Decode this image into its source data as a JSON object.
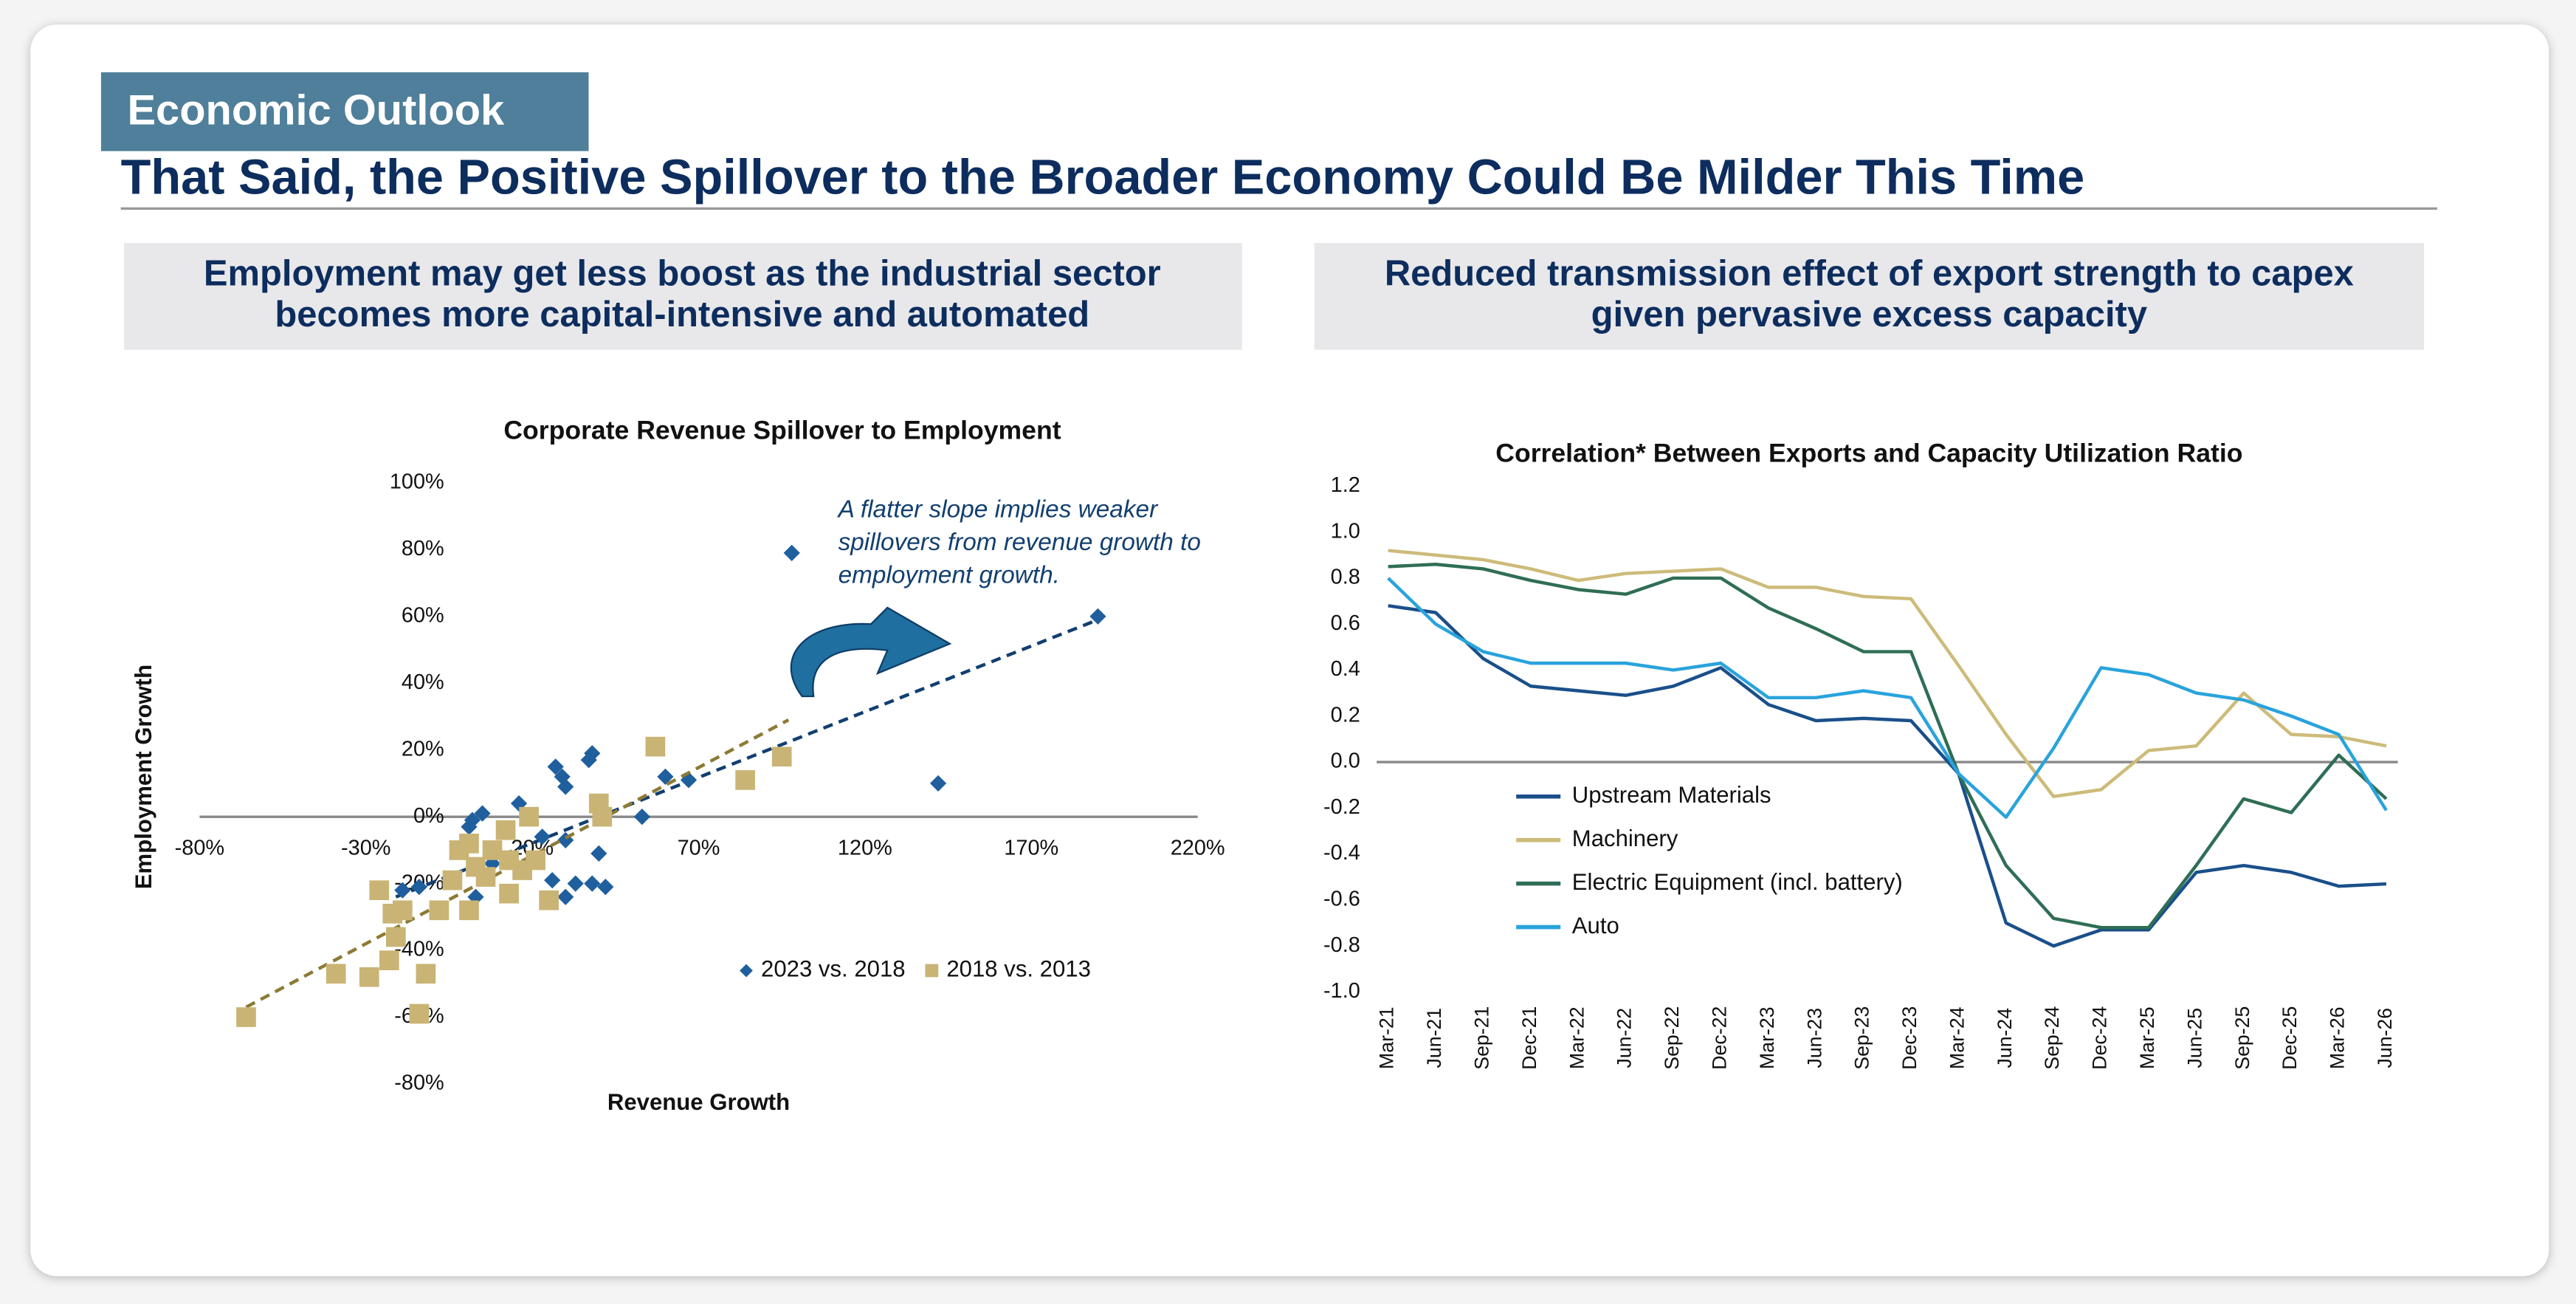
{
  "header": {
    "tag": "Economic Outlook",
    "title": "That Said, the Positive Spillover to the Broader Economy Could Be Milder This Time"
  },
  "panels": [
    {
      "heading": [
        "Employment may get less boost as the industrial sector",
        "becomes more capital-intensive and automated"
      ]
    },
    {
      "heading": [
        "Reduced transmission effect of export strength to capex",
        "given pervasive excess capacity"
      ]
    }
  ],
  "chart_data": [
    {
      "type": "scatter",
      "title": "Corporate Revenue Spillover to Employment",
      "x_label": "Revenue Growth",
      "y_label": "Employment Growth",
      "annotation": [
        "A flatter slope implies weaker",
        "spillovers from revenue growth to",
        "employment growth."
      ],
      "xlim": [
        -80,
        220
      ],
      "xticks": [
        {
          "value": -80,
          "label": "-80%"
        },
        {
          "value": -30,
          "label": "-30%"
        },
        {
          "value": 20,
          "label": "20%"
        },
        {
          "value": 70,
          "label": "70%"
        },
        {
          "value": 120,
          "label": "120%"
        },
        {
          "value": 170,
          "label": "170%"
        },
        {
          "value": 220,
          "label": "220%"
        }
      ],
      "ylim": [
        -80,
        100
      ],
      "yticks": [
        {
          "value": -80,
          "label": "-80%"
        },
        {
          "value": -60,
          "label": "-60%"
        },
        {
          "value": -40,
          "label": "-40%"
        },
        {
          "value": -20,
          "label": "-20%"
        },
        {
          "value": 0,
          "label": "0%"
        },
        {
          "value": 20,
          "label": "20%"
        },
        {
          "value": 40,
          "label": "40%"
        },
        {
          "value": 60,
          "label": "60%"
        },
        {
          "value": 80,
          "label": "80%"
        },
        {
          "value": 100,
          "label": "100%"
        }
      ],
      "series": [
        {
          "name": "2023 vs. 2018",
          "color": "#1f5f9e",
          "marker": "diamond",
          "x": [
            98,
            190,
            142,
            38,
            37,
            27,
            29,
            30,
            60,
            67,
            53,
            16,
            5,
            2,
            1,
            40,
            30,
            26,
            33,
            38,
            42,
            30,
            23,
            3,
            -14,
            -19,
            8
          ],
          "y": [
            79,
            60,
            10,
            19,
            17,
            15,
            12,
            9,
            12,
            11,
            0,
            4,
            1,
            -1,
            -3,
            -11,
            -7,
            -19,
            -20,
            -20,
            -21,
            -24,
            -6,
            -24,
            -21,
            -22,
            -14
          ],
          "trend": {
            "x": [
              -21,
              190
            ],
            "y": [
              -24,
              59
            ]
          }
        },
        {
          "name": "2018 vs. 2013",
          "color": "#c9b475",
          "marker": "square",
          "x": [
            -66,
            -14,
            -39,
            -29,
            -23,
            -12,
            -21,
            -19,
            -22,
            -26,
            -8,
            1,
            -2,
            1,
            6,
            13,
            17,
            13,
            21,
            25,
            12,
            19,
            40,
            41,
            57,
            84,
            95,
            8,
            -4,
            3
          ],
          "y": [
            -60,
            -59,
            -47,
            -48,
            -43,
            -47,
            -36,
            -28,
            -29,
            -22,
            -28,
            -28,
            -10,
            -8,
            -18,
            -13,
            -16,
            -23,
            -13,
            -25,
            -4,
            0,
            4,
            0,
            21,
            11,
            18,
            -10,
            -19,
            -15
          ],
          "trend": {
            "x": [
              -66,
              97
            ],
            "y": [
              -57,
              29
            ]
          }
        }
      ]
    },
    {
      "type": "line",
      "title": "Correlation* Between Exports and Capacity Utilization Ratio",
      "categories": [
        "Mar-21",
        "Jun-21",
        "Sep-21",
        "Dec-21",
        "Mar-22",
        "Jun-22",
        "Sep-22",
        "Dec-22",
        "Mar-23",
        "Jun-23",
        "Sep-23",
        "Dec-23",
        "Mar-24",
        "Jun-24",
        "Sep-24",
        "Dec-24",
        "Mar-25",
        "Jun-25",
        "Sep-25",
        "Dec-25",
        "Mar-26",
        "Jun-26"
      ],
      "ylim": [
        -1.0,
        1.2
      ],
      "yticks": [
        {
          "value": -1,
          "label": "-1.0"
        },
        -0.8,
        -0.6,
        -0.4,
        -0.2,
        {
          "value": 0,
          "label": "0.0"
        },
        0.2,
        0.4,
        0.6,
        0.8,
        {
          "value": 1,
          "label": "1.0"
        },
        1.2
      ],
      "series": [
        {
          "name": "Upstream Materials",
          "color": "#1a4f8a",
          "values": [
            0.68,
            0.65,
            0.45,
            0.33,
            0.31,
            0.29,
            0.33,
            0.41,
            0.25,
            0.18,
            0.19,
            0.18,
            -0.05,
            -0.7,
            -0.8,
            -0.73,
            -0.73,
            -0.48,
            -0.45,
            -0.48,
            -0.54,
            -0.53
          ]
        },
        {
          "name": "Machinery",
          "color": "#cdbb7a",
          "values": [
            0.92,
            0.9,
            0.88,
            0.84,
            0.79,
            0.82,
            0.83,
            0.84,
            0.76,
            0.76,
            0.72,
            0.71,
            0.42,
            0.12,
            -0.15,
            -0.12,
            0.05,
            0.07,
            0.3,
            0.12,
            0.11,
            0.07
          ]
        },
        {
          "name": "Electric Equipment (incl. battery)",
          "color": "#2f6e55",
          "values": [
            0.85,
            0.86,
            0.84,
            0.79,
            0.75,
            0.73,
            0.8,
            0.8,
            0.67,
            0.58,
            0.48,
            0.48,
            -0.05,
            -0.45,
            -0.68,
            -0.72,
            -0.72,
            -0.45,
            -0.16,
            -0.22,
            0.03,
            -0.16
          ]
        },
        {
          "name": "Auto",
          "color": "#29a3dc",
          "values": [
            0.8,
            0.6,
            0.48,
            0.43,
            0.43,
            0.43,
            0.4,
            0.43,
            0.28,
            0.28,
            0.31,
            0.28,
            -0.05,
            -0.24,
            0.06,
            0.41,
            0.38,
            0.3,
            0.27,
            0.2,
            0.12,
            -0.21
          ]
        }
      ]
    }
  ]
}
